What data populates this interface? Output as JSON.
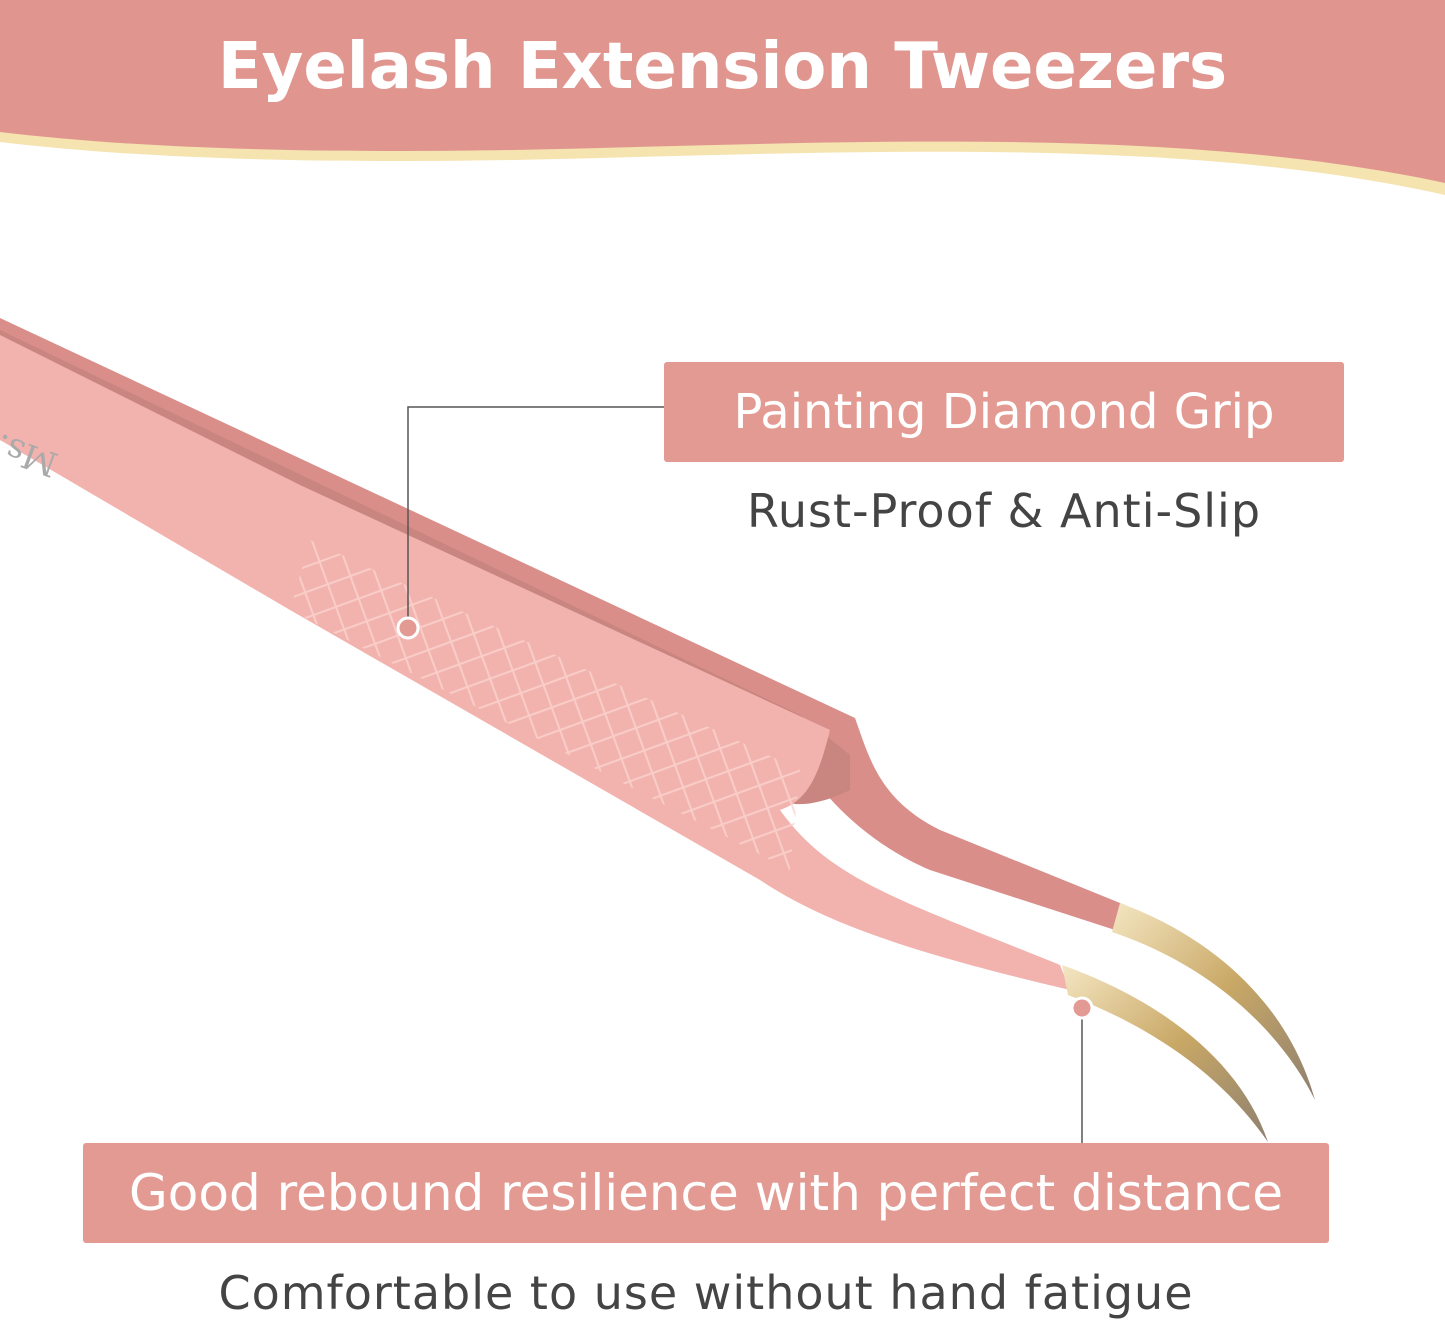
{
  "header": {
    "title": "Eyelash Extension Tweezers"
  },
  "brand_logo": "Ms.Queen",
  "callouts": [
    {
      "label": "Painting Diamond Grip",
      "subtitle": "Rust-Proof & Anti-Slip"
    },
    {
      "label": "Good rebound resilience with perfect distance",
      "subtitle": "Comfortable to use without hand fatigue"
    }
  ],
  "colors": {
    "banner": "#e0968f",
    "wave": "#f5e3b0",
    "label_bg": "#e39a92",
    "tweezer": "#f2b3ae",
    "tip": "#d9c08a"
  }
}
